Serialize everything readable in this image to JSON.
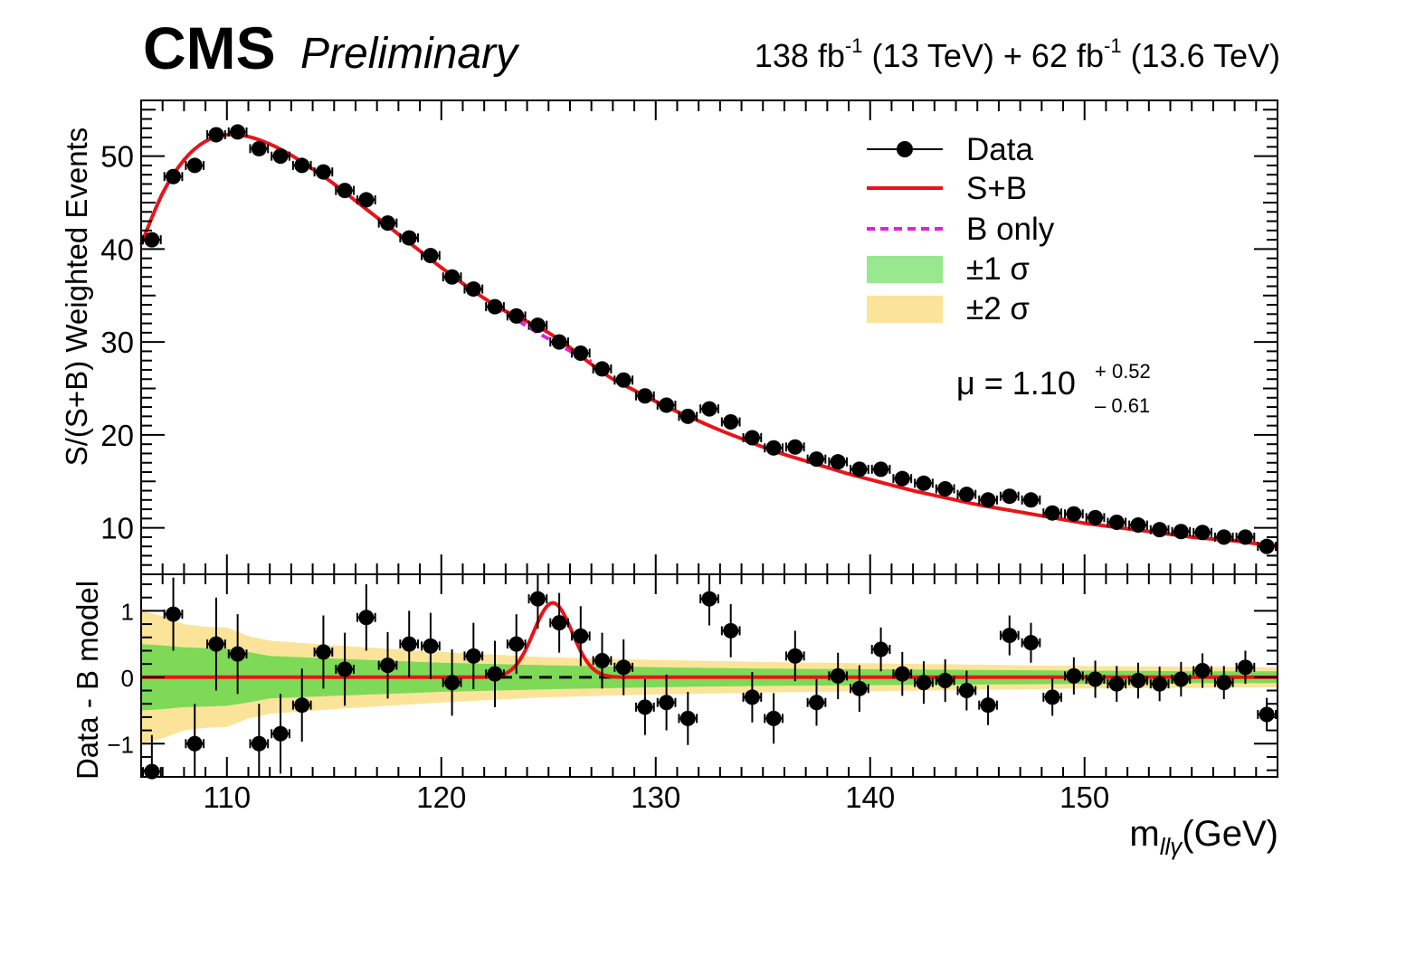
{
  "header": {
    "experiment": "CMS",
    "status": "Preliminary",
    "lumi_1": "138 fb",
    "lumi_1_exp": "-1",
    "lumi_1_energy": " (13 TeV) + 62 fb",
    "lumi_2_exp": "-1",
    "lumi_2_energy": " (13.6 TeV)"
  },
  "fit": {
    "mu_text": "μ = 1.10",
    "mu_up": "+ 0.52",
    "mu_down": "– 0.61"
  },
  "colors": {
    "data": "#000000",
    "sb": "#e8141b",
    "b_only": "#e020e0",
    "band_1sigma": "#7ed957",
    "band_2sigma": "#fbe49a"
  },
  "chart_data": [
    {
      "type": "scatter",
      "panel": "main",
      "ylabel": "S/(S+B) Weighted Events",
      "xlim": [
        106,
        159
      ],
      "ylim": [
        5,
        56
      ],
      "yticks": [
        10,
        20,
        30,
        40,
        50
      ],
      "legend": {
        "placement": "top-right",
        "entries": [
          {
            "label": "Data",
            "style": "marker"
          },
          {
            "label": "S+B",
            "style": "line"
          },
          {
            "label": "B only",
            "style": "dashed"
          },
          {
            "label": "±1 σ",
            "style": "band1"
          },
          {
            "label": "±2 σ",
            "style": "band2"
          }
        ]
      },
      "series": [
        {
          "name": "Data",
          "x": [
            106.5,
            107.5,
            108.5,
            109.5,
            110.5,
            111.5,
            112.5,
            113.5,
            114.5,
            115.5,
            116.5,
            117.5,
            118.5,
            119.5,
            120.5,
            121.5,
            122.5,
            123.5,
            124.5,
            125.5,
            126.5,
            127.5,
            128.5,
            129.5,
            130.5,
            131.5,
            132.5,
            133.5,
            134.5,
            135.5,
            136.5,
            137.5,
            138.5,
            139.5,
            140.5,
            141.5,
            142.5,
            143.5,
            144.5,
            145.5,
            146.5,
            147.5,
            148.5,
            149.5,
            150.5,
            151.5,
            152.5,
            153.5,
            154.5,
            155.5,
            156.5,
            157.5,
            158.5
          ],
          "y": [
            41.0,
            47.8,
            49.0,
            52.3,
            52.6,
            50.8,
            50.0,
            49.0,
            48.3,
            46.3,
            45.3,
            42.8,
            41.2,
            39.3,
            37.0,
            35.7,
            33.8,
            32.8,
            31.8,
            30.0,
            28.8,
            27.1,
            25.9,
            24.2,
            23.2,
            22.0,
            22.8,
            21.4,
            19.7,
            18.6,
            18.7,
            17.4,
            17.1,
            16.3,
            16.3,
            15.3,
            14.8,
            14.2,
            13.6,
            13.0,
            13.4,
            13.0,
            11.6,
            11.5,
            11.1,
            10.6,
            10.3,
            9.8,
            9.6,
            9.5,
            9.0,
            9.0,
            8.0
          ]
        },
        {
          "name": "S+B",
          "x": [
            106,
            107,
            108,
            109,
            110,
            111,
            112,
            113,
            114,
            115,
            116,
            117,
            118,
            119,
            120,
            121,
            122,
            123,
            124,
            125,
            126,
            127,
            128,
            129,
            130,
            131,
            132,
            133,
            134,
            135,
            136,
            137,
            138,
            139,
            140,
            141,
            142,
            143,
            144,
            145,
            146,
            147,
            148,
            149,
            150,
            151,
            152,
            153,
            154,
            155,
            156,
            157,
            158,
            159
          ],
          "y": [
            40.5,
            46.0,
            49.6,
            51.6,
            52.3,
            52.1,
            51.3,
            50.1,
            48.6,
            47.0,
            45.2,
            43.4,
            41.6,
            39.8,
            38.0,
            36.3,
            34.7,
            33.3,
            32.2,
            31.0,
            29.4,
            27.6,
            26.0,
            24.8,
            23.6,
            22.5,
            21.5,
            20.5,
            19.6,
            18.7,
            17.9,
            17.2,
            16.5,
            15.8,
            15.2,
            14.6,
            14.0,
            13.5,
            13.0,
            12.5,
            12.1,
            11.7,
            11.3,
            10.9,
            10.5,
            10.2,
            9.9,
            9.6,
            9.3,
            9.0,
            8.8,
            8.6,
            8.3,
            8.1
          ]
        },
        {
          "name": "B only",
          "x": [
            122.5,
            123.5,
            124.5,
            125.5,
            126.5,
            127.0
          ],
          "y": [
            33.7,
            32.4,
            31.0,
            29.7,
            28.4,
            27.9
          ]
        }
      ]
    },
    {
      "type": "scatter",
      "panel": "ratio",
      "xlabel": "m",
      "xlabel_sub": "llγ",
      "xlabel_unit": "(GeV)",
      "ylabel": "Data - B model",
      "xlim": [
        106,
        159
      ],
      "ylim": [
        -1.5,
        1.55
      ],
      "yticks": [
        -1,
        0,
        1
      ],
      "xticks": [
        110,
        120,
        130,
        140,
        150
      ],
      "series": [
        {
          "name": "Data",
          "x": [
            106.5,
            107.5,
            108.5,
            109.5,
            110.5,
            111.5,
            112.5,
            113.5,
            114.5,
            115.5,
            116.5,
            117.5,
            118.5,
            119.5,
            120.5,
            121.5,
            122.5,
            123.5,
            124.5,
            125.5,
            126.5,
            127.5,
            128.5,
            129.5,
            130.5,
            131.5,
            132.5,
            133.5,
            134.5,
            135.5,
            136.5,
            137.5,
            138.5,
            139.5,
            140.5,
            141.5,
            142.5,
            143.5,
            144.5,
            145.5,
            146.5,
            147.5,
            148.5,
            149.5,
            150.5,
            151.5,
            152.5,
            153.5,
            154.5,
            155.5,
            156.5,
            157.5,
            158.5
          ],
          "y": [
            -1.42,
            0.95,
            -1.0,
            0.5,
            0.35,
            -1.0,
            -0.85,
            -0.42,
            0.38,
            0.12,
            0.9,
            0.18,
            0.5,
            0.47,
            -0.08,
            0.32,
            0.05,
            0.5,
            1.18,
            0.82,
            0.62,
            0.25,
            0.15,
            -0.45,
            -0.38,
            -0.62,
            1.18,
            0.7,
            -0.3,
            -0.62,
            0.32,
            -0.38,
            0.02,
            -0.17,
            0.42,
            0.05,
            -0.08,
            -0.05,
            -0.2,
            -0.42,
            0.63,
            0.52,
            -0.3,
            0.02,
            -0.03,
            -0.1,
            -0.05,
            -0.1,
            -0.03,
            0.1,
            -0.08,
            0.15,
            -0.56
          ],
          "yerr": [
            0.55,
            0.55,
            0.6,
            0.7,
            0.6,
            0.6,
            0.6,
            0.55,
            0.55,
            0.55,
            0.5,
            0.5,
            0.5,
            0.5,
            0.5,
            0.5,
            0.5,
            0.45,
            0.45,
            0.45,
            0.45,
            0.42,
            0.42,
            0.42,
            0.42,
            0.4,
            0.4,
            0.4,
            0.38,
            0.38,
            0.38,
            0.35,
            0.35,
            0.35,
            0.33,
            0.33,
            0.32,
            0.32,
            0.3,
            0.3,
            0.3,
            0.3,
            0.28,
            0.28,
            0.28,
            0.27,
            0.27,
            0.26,
            0.26,
            0.26,
            0.25,
            0.25,
            0.25
          ]
        },
        {
          "name": "S+B",
          "signal_mass": 125.2,
          "signal_amplitude": 1.12,
          "signal_width": 0.9
        },
        {
          "name": "B only",
          "y_constant": 0
        }
      ],
      "bands": {
        "x": [
          106,
          107,
          108,
          109,
          110,
          111,
          112,
          115,
          120,
          125,
          130,
          135,
          140,
          145,
          150,
          155,
          159
        ],
        "sigma1": [
          0.5,
          0.48,
          0.45,
          0.44,
          0.43,
          0.38,
          0.32,
          0.28,
          0.22,
          0.18,
          0.15,
          0.13,
          0.12,
          0.11,
          0.1,
          0.09,
          0.09
        ],
        "sigma2": [
          1.0,
          0.92,
          0.8,
          0.76,
          0.75,
          0.62,
          0.55,
          0.48,
          0.38,
          0.3,
          0.26,
          0.23,
          0.21,
          0.19,
          0.17,
          0.16,
          0.15
        ]
      }
    }
  ]
}
